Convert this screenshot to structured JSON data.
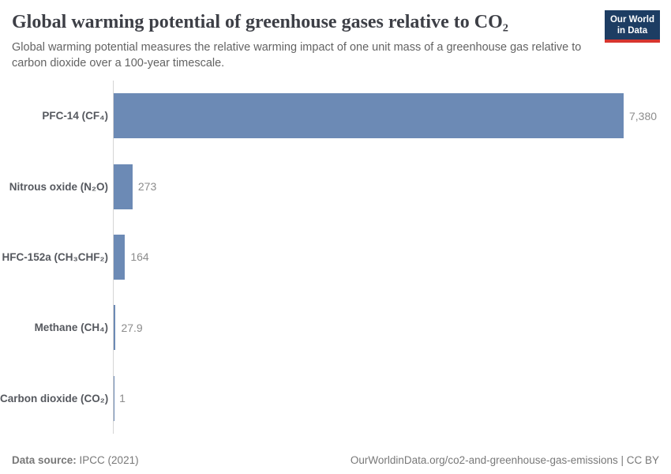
{
  "header": {
    "title": "Global warming potential of greenhouse gases relative to CO₂",
    "subtitle": "Global warming potential measures the relative warming impact of one unit mass of a greenhouse gas relative to carbon dioxide over a 100-year timescale.",
    "logo": {
      "line1": "Our World",
      "line2": "in Data"
    }
  },
  "chart_data": {
    "type": "bar",
    "orientation": "horizontal",
    "title": "Global warming potential of greenhouse gases relative to CO₂",
    "categories": [
      "PFC-14 (CF₄)",
      "Nitrous oxide (N₂O)",
      "HFC-152a (CH₃CHF₂)",
      "Methane (CH₄)",
      "Carbon dioxide (CO₂)"
    ],
    "values": [
      7380,
      273,
      164,
      27.9,
      1
    ],
    "value_labels": [
      "7,380",
      "273",
      "164",
      "27.9",
      "1"
    ],
    "xlim": [
      0,
      7380
    ],
    "grid": false,
    "legend": "none",
    "bar_color": "#6c8ab5"
  },
  "footer": {
    "source_label": "Data source:",
    "source_value": "IPCC (2021)",
    "link_text": "OurWorldinData.org/co2-and-greenhouse-gas-emissions | CC BY"
  },
  "colors": {
    "bar": "#6c8ab5",
    "logo_background": "#1d3d63",
    "logo_stripe": "#d7352e",
    "axis_line": "#d4d4d4"
  }
}
